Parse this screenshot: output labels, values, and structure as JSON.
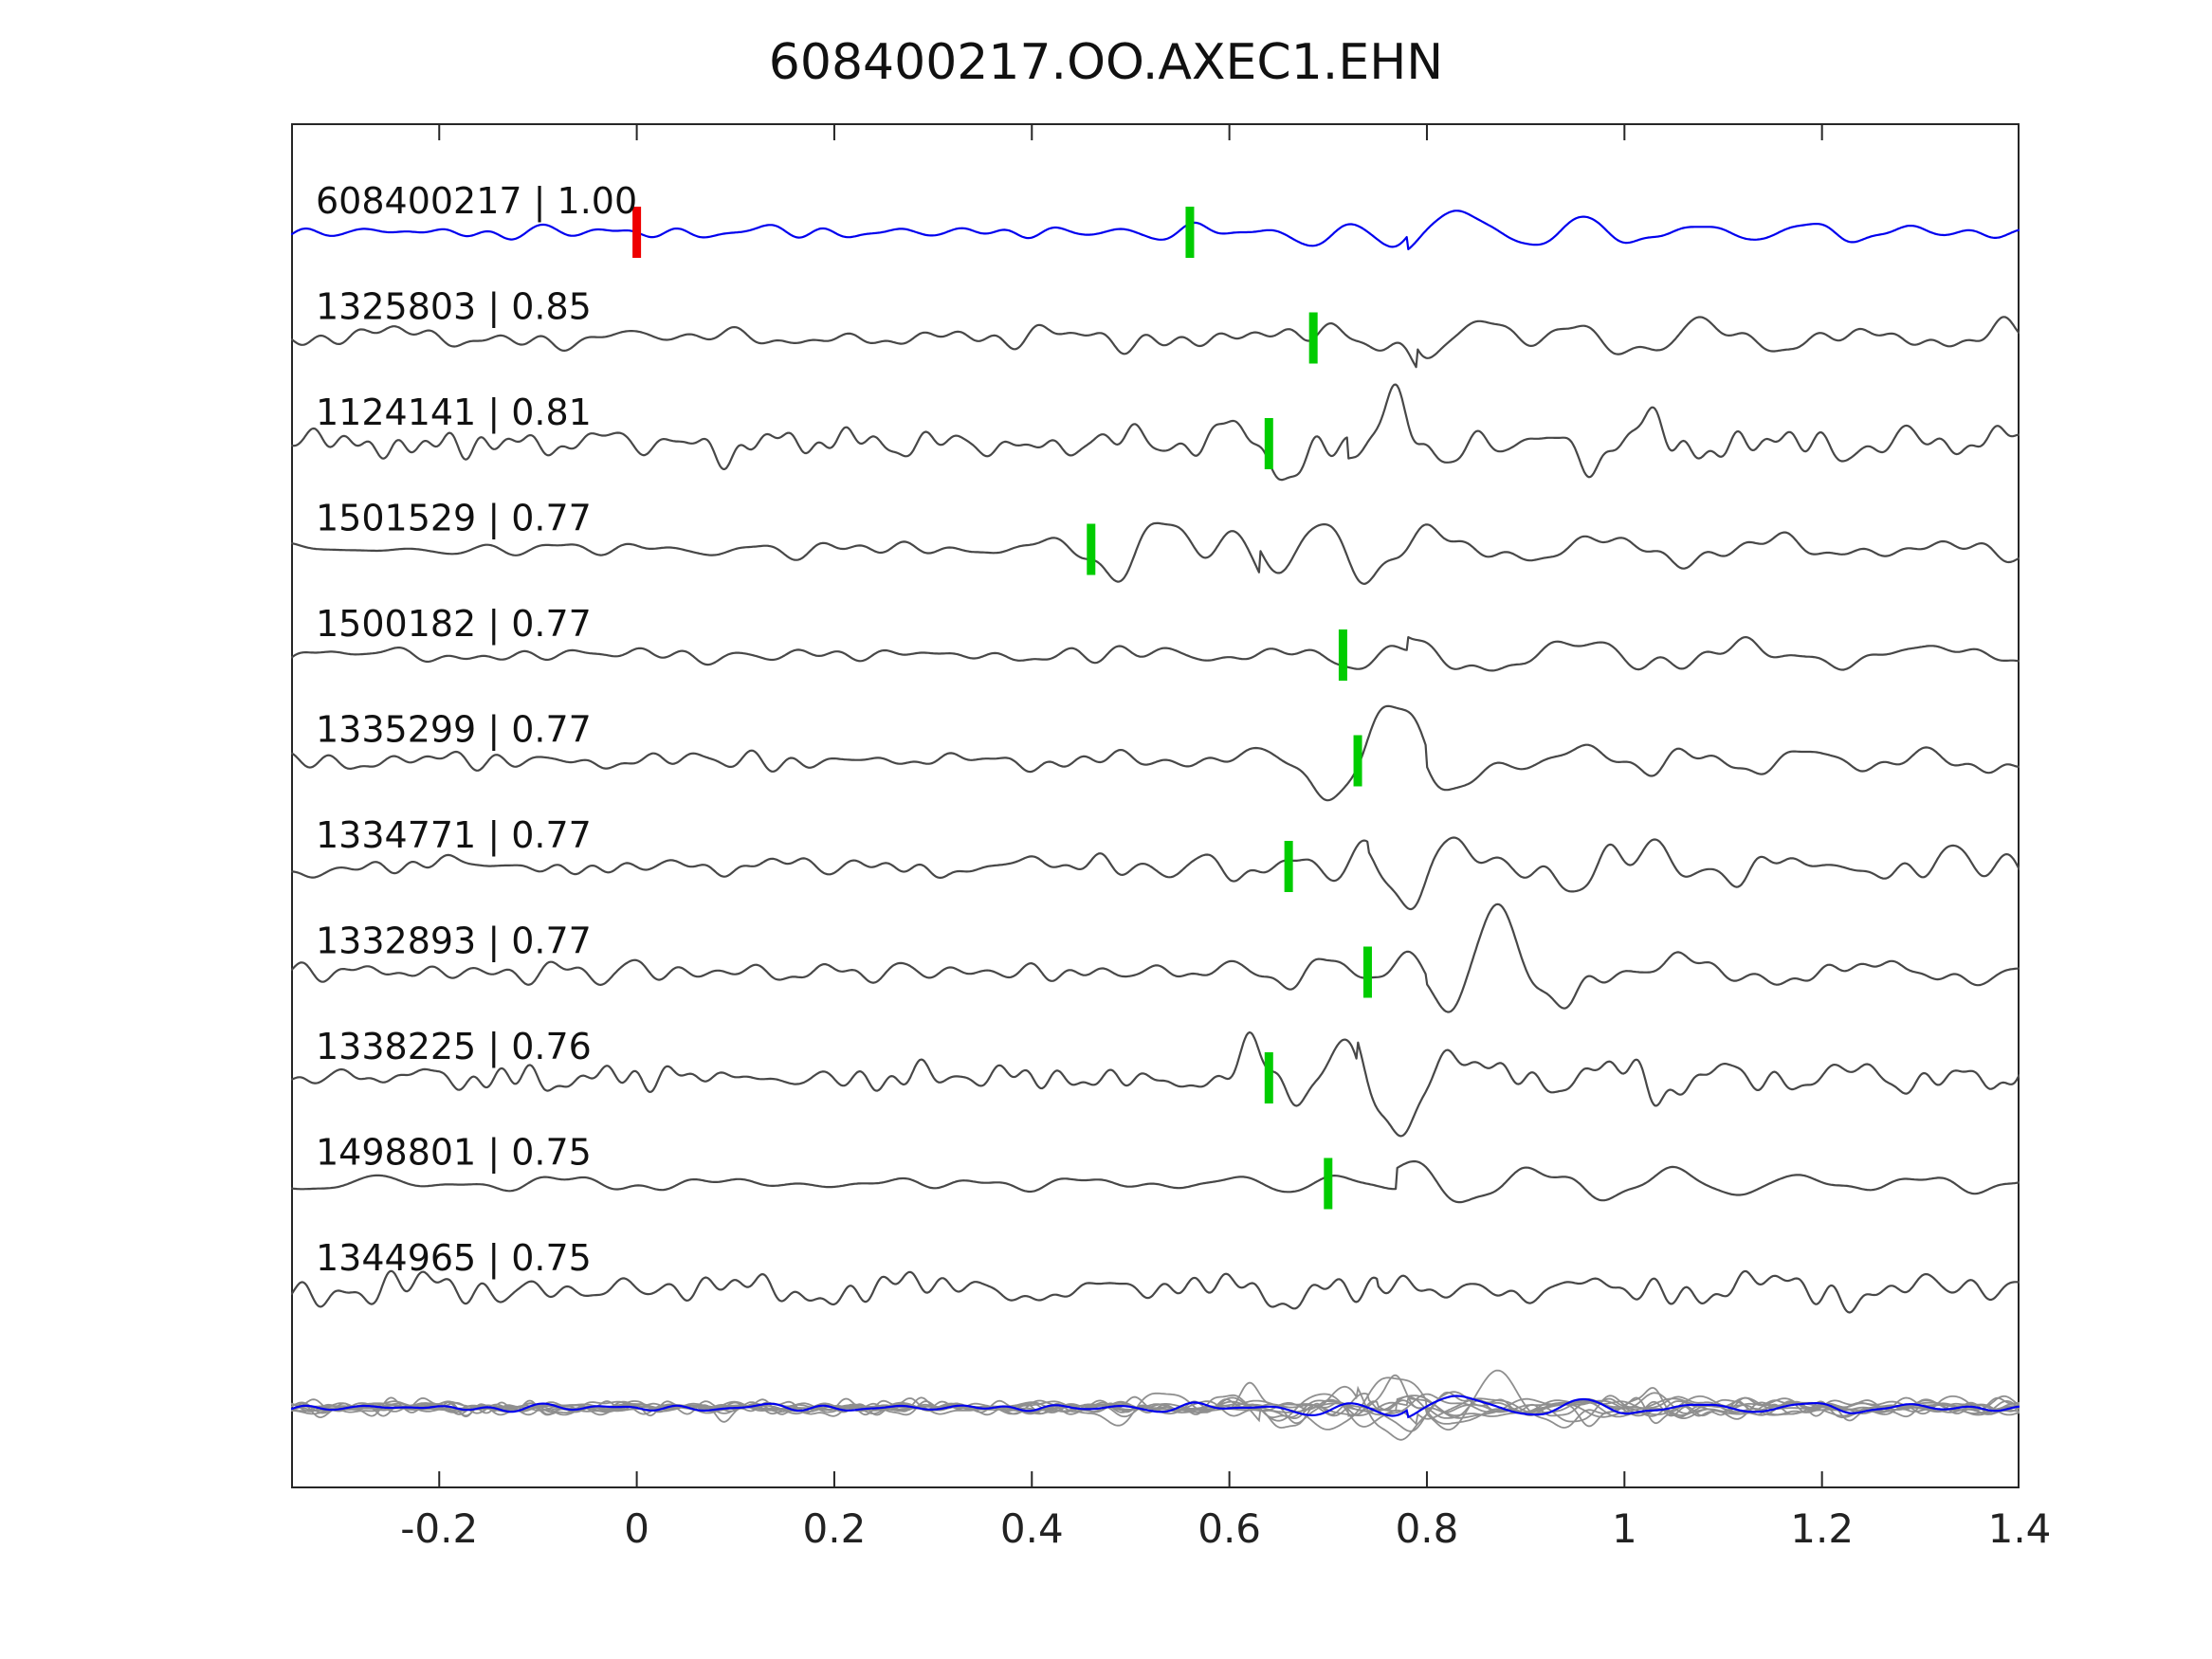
{
  "title": "608400217.OO.AXEC1.EHN",
  "colors": {
    "background": "#ffffff",
    "axis": "#262626",
    "label_text": "#111111",
    "template": "#0000ee",
    "trace": "#474747",
    "overlay_trace": "#8f8f8f",
    "pick_marker": "#00cc00",
    "template_marker": "#ee0000"
  },
  "chart_data": {
    "type": "line",
    "title": "608400217.OO.AXEC1.EHN",
    "xlabel": "",
    "ylabel": "",
    "grid": false,
    "legend": "none",
    "xlim": [
      -0.35,
      1.4
    ],
    "xticks": [
      -0.2,
      0,
      0.2,
      0.4,
      0.6,
      0.8,
      1,
      1.2,
      1.4
    ],
    "xticklabels": [
      "-0.2",
      "0",
      "0.2",
      "0.4",
      "0.6",
      "0.8",
      "1",
      "1.2",
      "1.4"
    ],
    "description": "Stacked normalized seismic waveform traces. Top blue trace is template event 608400217; gray traces below are detections sorted by cross-correlation coefficient. Green bars mark pick times on each trace; red bar marks template zero time. Bottom row overlays all gray traces with the blue template.",
    "traces": [
      {
        "label": "608400217 | 1.00",
        "event_id": "608400217",
        "cc": 1.0,
        "is_template": true,
        "pick_time": 0.56,
        "zero_marker": 0.0,
        "render": {
          "seed": 11,
          "noise_amp": 8,
          "noise_f": 24,
          "burst_center": 0.78,
          "burst_amp": 42,
          "burst_width": 0.06
        }
      },
      {
        "label": "1325803 | 0.85",
        "event_id": "1325803",
        "cc": 0.85,
        "is_template": false,
        "pick_time": 0.685,
        "zero_marker": null,
        "render": {
          "seed": 22,
          "noise_amp": 14,
          "noise_f": 30,
          "burst_center": 0.79,
          "burst_amp": 48,
          "burst_width": 0.09
        }
      },
      {
        "label": "1124141 | 0.81",
        "event_id": "1124141",
        "cc": 0.81,
        "is_template": false,
        "pick_time": 0.64,
        "zero_marker": null,
        "render": {
          "seed": 33,
          "noise_amp": 18,
          "noise_f": 36,
          "burst_center": 0.72,
          "burst_amp": 52,
          "burst_width": 0.08
        }
      },
      {
        "label": "1501529 | 0.77",
        "event_id": "1501529",
        "cc": 0.77,
        "is_template": false,
        "pick_time": 0.46,
        "zero_marker": null,
        "render": {
          "seed": 44,
          "noise_amp": 9,
          "noise_f": 22,
          "burst_center": 0.63,
          "burst_amp": 58,
          "burst_width": 0.13
        }
      },
      {
        "label": "1500182 | 0.77",
        "event_id": "1500182",
        "cc": 0.77,
        "is_template": false,
        "pick_time": 0.715,
        "zero_marker": null,
        "render": {
          "seed": 55,
          "noise_amp": 10,
          "noise_f": 26,
          "burst_center": 0.78,
          "burst_amp": 46,
          "burst_width": 0.1
        }
      },
      {
        "label": "1335299 | 0.77",
        "event_id": "1335299",
        "cc": 0.77,
        "is_template": false,
        "pick_time": 0.73,
        "zero_marker": null,
        "render": {
          "seed": 66,
          "noise_amp": 11,
          "noise_f": 28,
          "burst_center": 0.8,
          "burst_amp": 50,
          "burst_width": 0.1
        }
      },
      {
        "label": "1334771 | 0.77",
        "event_id": "1334771",
        "cc": 0.77,
        "is_template": false,
        "pick_time": 0.66,
        "zero_marker": null,
        "render": {
          "seed": 77,
          "noise_amp": 16,
          "noise_f": 34,
          "burst_center": 0.74,
          "burst_amp": 50,
          "burst_width": 0.09
        }
      },
      {
        "label": "1332893 | 0.77",
        "event_id": "1332893",
        "cc": 0.77,
        "is_template": false,
        "pick_time": 0.74,
        "zero_marker": null,
        "render": {
          "seed": 88,
          "noise_amp": 12,
          "noise_f": 30,
          "burst_center": 0.8,
          "burst_amp": 50,
          "burst_width": 0.09
        }
      },
      {
        "label": "1338225 | 0.76",
        "event_id": "1338225",
        "cc": 0.76,
        "is_template": false,
        "pick_time": 0.64,
        "zero_marker": null,
        "render": {
          "seed": 99,
          "noise_amp": 17,
          "noise_f": 36,
          "burst_center": 0.73,
          "burst_amp": 50,
          "burst_width": 0.09
        }
      },
      {
        "label": "1498801 | 0.75",
        "event_id": "1498801",
        "cc": 0.75,
        "is_template": false,
        "pick_time": 0.7,
        "zero_marker": null,
        "render": {
          "seed": 110,
          "noise_amp": 9,
          "noise_f": 24,
          "burst_center": 0.77,
          "burst_amp": 55,
          "burst_width": 0.11
        }
      },
      {
        "label": "1344965 | 0.75",
        "event_id": "1344965",
        "cc": 0.75,
        "is_template": false,
        "pick_time": null,
        "zero_marker": null,
        "render": {
          "seed": 121,
          "noise_amp": 20,
          "noise_f": 38,
          "burst_center": 0.75,
          "burst_amp": 20,
          "burst_width": 0.12
        }
      }
    ],
    "overlay_row": {
      "contains": "all detection traces overlaid in gray with blue template on top",
      "amplitude_scale": 0.55
    }
  }
}
